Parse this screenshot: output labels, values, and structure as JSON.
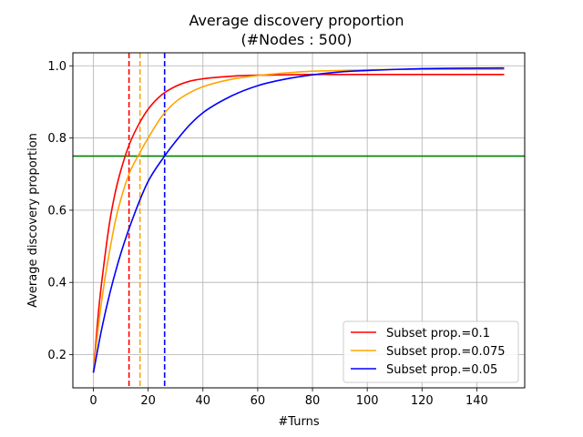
{
  "chart_data": {
    "type": "line",
    "title": "Average discovery proportion",
    "subtitle": "(#Nodes : 500)",
    "xlabel": "#Turns",
    "ylabel": "Average discovery proportion",
    "xlim": [
      -7.5,
      157.5
    ],
    "ylim": [
      0.108,
      1.036
    ],
    "xticks": [
      0,
      20,
      40,
      60,
      80,
      100,
      120,
      140
    ],
    "xtick_labels": [
      "0",
      "20",
      "40",
      "60",
      "80",
      "100",
      "120",
      "140"
    ],
    "yticks": [
      0.2,
      0.4,
      0.6,
      0.8,
      1.0
    ],
    "ytick_labels": [
      "0.2",
      "0.4",
      "0.6",
      "0.8",
      "1.0"
    ],
    "grid": true,
    "legend_position": "lower-right",
    "threshold_line": {
      "y": 0.75,
      "color": "#008000"
    },
    "series": [
      {
        "name": "Subset prop.=0.1",
        "color": "#ff0000",
        "x": [
          0,
          2,
          4,
          6,
          8,
          10,
          13,
          16,
          20,
          25,
          30,
          35,
          40,
          50,
          60,
          70,
          80,
          100,
          120,
          150
        ],
        "y": [
          0.15,
          0.33,
          0.46,
          0.57,
          0.65,
          0.71,
          0.78,
          0.83,
          0.88,
          0.92,
          0.943,
          0.957,
          0.964,
          0.971,
          0.974,
          0.975,
          0.976,
          0.976,
          0.976,
          0.976
        ],
        "crossing_turn": 13
      },
      {
        "name": "Subset prop.=0.075",
        "color": "#ffa500",
        "x": [
          0,
          2,
          4,
          6,
          8,
          10,
          13,
          17,
          20,
          25,
          30,
          35,
          40,
          50,
          60,
          70,
          80,
          90,
          100,
          120,
          150
        ],
        "y": [
          0.15,
          0.29,
          0.4,
          0.49,
          0.57,
          0.63,
          0.7,
          0.76,
          0.8,
          0.86,
          0.9,
          0.925,
          0.942,
          0.962,
          0.973,
          0.98,
          0.985,
          0.987,
          0.989,
          0.99,
          0.99
        ],
        "crossing_turn": 17
      },
      {
        "name": "Subset prop.=0.05",
        "color": "#0000ff",
        "x": [
          0,
          3,
          6,
          10,
          15,
          20,
          26,
          30,
          35,
          40,
          50,
          60,
          70,
          80,
          90,
          100,
          110,
          120,
          130,
          150
        ],
        "y": [
          0.15,
          0.27,
          0.37,
          0.48,
          0.59,
          0.68,
          0.75,
          0.79,
          0.835,
          0.87,
          0.915,
          0.945,
          0.963,
          0.975,
          0.983,
          0.987,
          0.99,
          0.992,
          0.993,
          0.994
        ],
        "crossing_turn": 26
      }
    ]
  }
}
